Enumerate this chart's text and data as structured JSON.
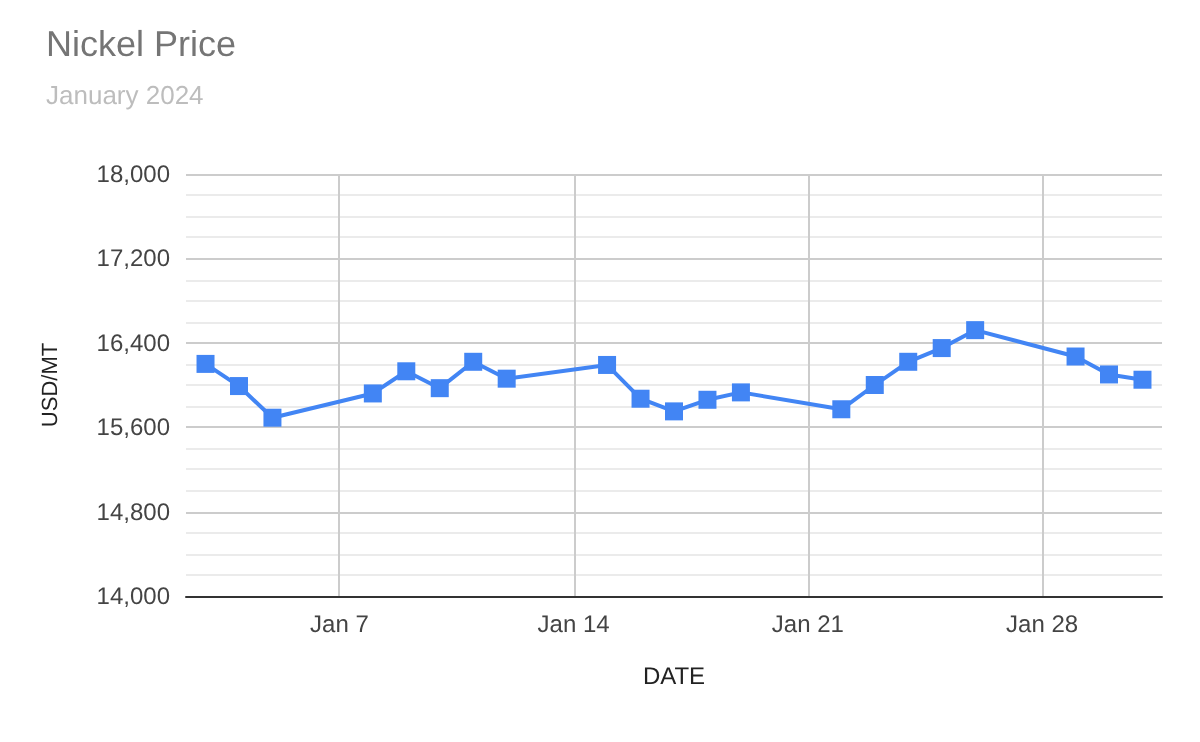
{
  "chart_data": {
    "type": "line",
    "title": "Nickel Price",
    "subtitle": "January 2024",
    "xlabel": "DATE",
    "ylabel": "USD/MT",
    "x": [
      "2024-01-03",
      "2024-01-04",
      "2024-01-05",
      "2024-01-08",
      "2024-01-09",
      "2024-01-10",
      "2024-01-11",
      "2024-01-12",
      "2024-01-15",
      "2024-01-16",
      "2024-01-17",
      "2024-01-18",
      "2024-01-19",
      "2024-01-22",
      "2024-01-23",
      "2024-01-24",
      "2024-01-25",
      "2024-01-26",
      "2024-01-29",
      "2024-01-30",
      "2024-01-31"
    ],
    "series": [
      {
        "color": "#4285f4",
        "values": [
          16200,
          15990,
          15690,
          15920,
          16130,
          15970,
          16220,
          16060,
          16190,
          15870,
          15750,
          15860,
          15930,
          15770,
          16000,
          16220,
          16350,
          16520,
          16270,
          16100,
          16050
        ]
      }
    ],
    "xlim": [
      "2024-01-02T10:00",
      "2024-01-31T14:00"
    ],
    "xticks": [
      {
        "value": "2024-01-07",
        "label": "Jan 7"
      },
      {
        "value": "2024-01-14",
        "label": "Jan 14"
      },
      {
        "value": "2024-01-21",
        "label": "Jan 21"
      },
      {
        "value": "2024-01-28",
        "label": "Jan 28"
      }
    ],
    "ylim": [
      14000,
      18000
    ],
    "yticks": [
      {
        "value": 14000,
        "label": "14,000"
      },
      {
        "value": 14200,
        "label": null
      },
      {
        "value": 14400,
        "label": null
      },
      {
        "value": 14600,
        "label": null
      },
      {
        "value": 14800,
        "label": "14,800"
      },
      {
        "value": 15000,
        "label": null
      },
      {
        "value": 15200,
        "label": null
      },
      {
        "value": 15400,
        "label": null
      },
      {
        "value": 15600,
        "label": "15,600"
      },
      {
        "value": 15800,
        "label": null
      },
      {
        "value": 16000,
        "label": null
      },
      {
        "value": 16200,
        "label": null
      },
      {
        "value": 16400,
        "label": "16,400"
      },
      {
        "value": 16600,
        "label": null
      },
      {
        "value": 16800,
        "label": null
      },
      {
        "value": 17000,
        "label": null
      },
      {
        "value": 17200,
        "label": "17,200"
      },
      {
        "value": 17400,
        "label": null
      },
      {
        "value": 17600,
        "label": null
      },
      {
        "value": 17800,
        "label": null
      },
      {
        "value": 18000,
        "label": "18,000"
      }
    ],
    "grid": true,
    "marker": "square",
    "line_style": "solid"
  }
}
